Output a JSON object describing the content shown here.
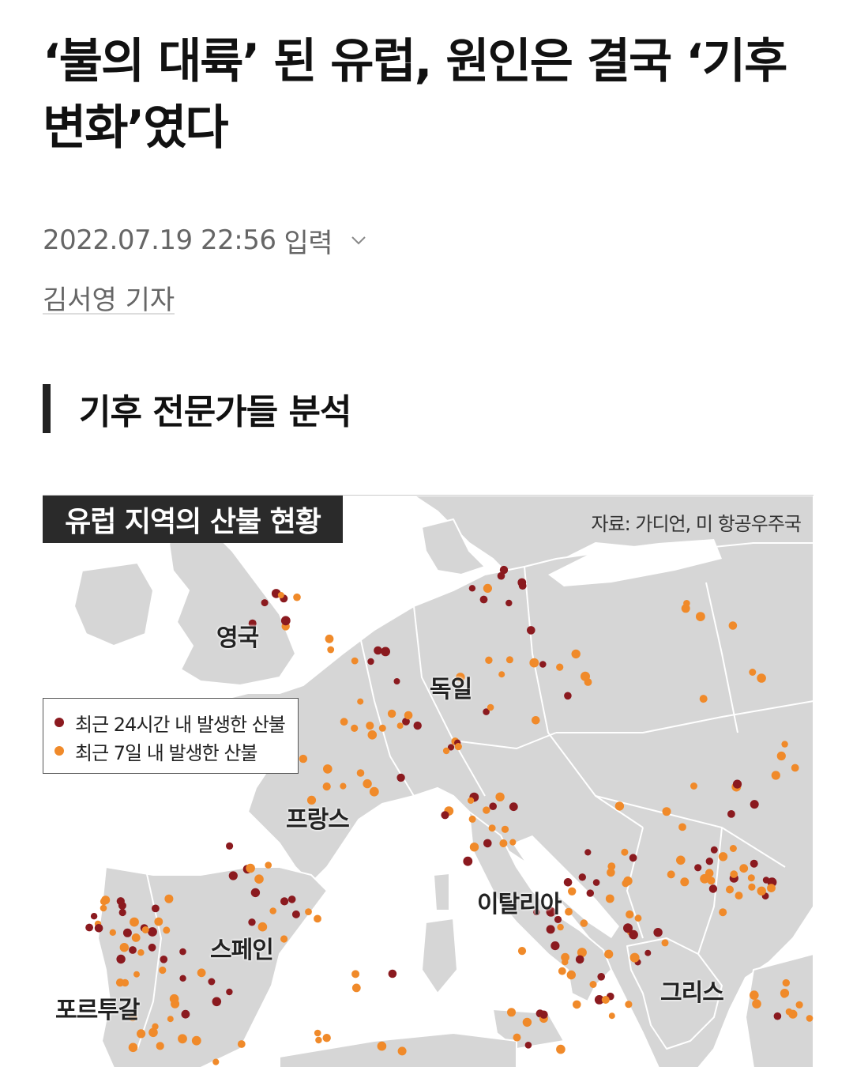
{
  "article": {
    "headline": "‘불의 대륙’ 된 유럽, 원인은 결국 ‘기후변화’였다",
    "timestamp": "2022.07.19 22:56",
    "timestamp_suffix": "입력",
    "author": "김서영 기자",
    "section_title": "기후 전문가들 분석"
  },
  "map": {
    "title": "유럽 지역의 산불 현황",
    "source": "자료: 가디언, 미 항공우주국",
    "legend": [
      {
        "label": "최근 24시간 내 발생한 산불",
        "color": "#8b1a1f"
      },
      {
        "label": "최근 7일 내 발생한 산불",
        "color": "#f08a2a"
      }
    ],
    "countries": {
      "uk": "영국",
      "germany": "독일",
      "france": "프랑스",
      "italy": "이탈리아",
      "spain": "스페인",
      "portugal": "포르투갈",
      "greece": "그리스"
    },
    "colors": {
      "land": "#d6d6d6",
      "sea": "#ffffff",
      "border": "#ffffff"
    }
  }
}
